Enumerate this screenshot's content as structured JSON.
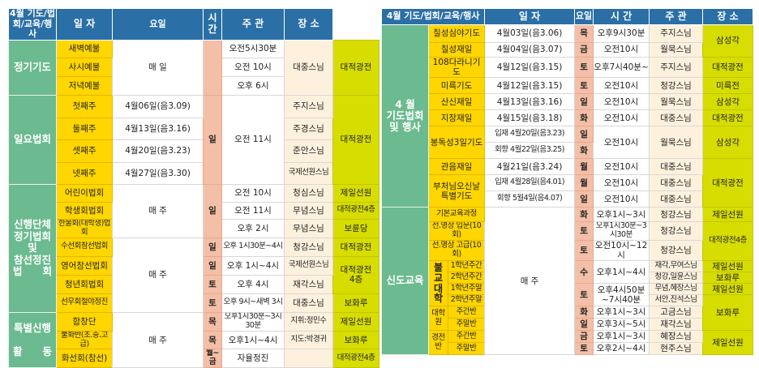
{
  "colors": {
    "header": "#2a6fa5",
    "category": "#6cba8f",
    "item": "#ffd600",
    "day": "#f3bfa6",
    "host": "#fdf1de",
    "place": "#d7dd00"
  },
  "L": {
    "header": {
      "cat": "4월 기도/법회/교육/행사",
      "date": "일 자",
      "day": "요일",
      "time": "시 간",
      "host": "주 관",
      "place": "장 소"
    },
    "regular": {
      "category": "정기기도",
      "items": [
        "새벽예불",
        "사시예불",
        "저녁예불"
      ],
      "date": "매 일",
      "times": [
        "오전5시30분",
        "오전 10시",
        "오후 6시"
      ],
      "host": "대중스님",
      "place": "대적광전"
    },
    "sunday": {
      "category": "일요법회",
      "items": [
        "첫째주",
        "둘째주",
        "셋째주",
        "넷째주"
      ],
      "dates": [
        "4월06일(음3.09)",
        "4월13일(음3.16)",
        "4월20일(음3.23)",
        "4월27일(음3.30)"
      ],
      "day": "일",
      "time": "오전 11시",
      "hosts": [
        "주지스님",
        "주경스님",
        "준안스님",
        "국제선원스님"
      ],
      "place": "대적광전"
    },
    "groups": {
      "category": "신행단체\n정기법회\n및\n참선정진\n법　　회",
      "items": [
        "어린이법회",
        "학생회법회",
        "한울회(대학생)법회",
        "수선회참선법회",
        "영어참선법회",
        "청년회법회",
        "선우회철야정진"
      ],
      "date_a": "매 주",
      "day_a": "일",
      "date_b": "매 주",
      "days_b": [
        "일",
        "일",
        "토",
        "토"
      ],
      "times": [
        "오전 10시",
        "오전 11시",
        "오후 2시",
        "오후 1시30분~4시",
        "오후 1시~4시",
        "오후 4시",
        "오후 9시~새벽 3시"
      ],
      "hosts": [
        "청심스님",
        "무념스님",
        "무념스님",
        "청강스님",
        "국제선원스님",
        "재각스님",
        "대중스님"
      ],
      "places": [
        "제일선원",
        "대적광전4층",
        "보륜당",
        "대적광전",
        "대적광전\n4층",
        "보화루"
      ]
    },
    "special": {
      "category": "특별신행\n\n활　　동",
      "items": [
        "합창단",
        "불화반(초.중.고급)",
        "화선회(참선)"
      ],
      "date": "매 주",
      "days": [
        "목",
        "목",
        "월~금"
      ],
      "times": [
        "오후1시30분~3시30분",
        "오후1시~4시",
        "자율정진"
      ],
      "hosts": [
        "지휘:정민수",
        "지도:박경귀",
        ""
      ],
      "places": [
        "제일선원",
        "보화루",
        "대적광전4층"
      ]
    }
  },
  "R": {
    "header": {
      "cat": "4월 기도/법회/교육/행사",
      "date": "일 자",
      "day": "요일",
      "time": "시 간",
      "host": "주 관",
      "place": "장 소"
    },
    "events": {
      "category": "4 월\n기도법회\n및 행사",
      "rows": [
        {
          "name": "칠성심야기도",
          "date": "4월03일(음3.06)",
          "day": "목",
          "time": "오후9시30분",
          "host": "주지스님",
          "place": "삼성각"
        },
        {
          "name": "칠성재일",
          "date": "4월04일(음3.07)",
          "day": "금",
          "time": "오전10시",
          "host": "월묵스님"
        },
        {
          "name": "108다라니기도",
          "date": "4월12일(음3.15)",
          "day": "토",
          "time": "오후7시40분~",
          "host": "주지스님",
          "place": "대적광전"
        },
        {
          "name": "미륵기도",
          "date": "4월12일(음3.15)",
          "day": "토",
          "time": "오전10시",
          "host": "청강스님",
          "place": "미륵전"
        },
        {
          "name": "산신재일",
          "date": "4월13일(음3.16)",
          "day": "일",
          "time": "오전10시",
          "host": "월묵스님",
          "place": "삼성각"
        },
        {
          "name": "지장재일",
          "date": "4월15일(음3.18)",
          "day": "화",
          "time": "오전10시",
          "host": "대중스님",
          "place": "대적광전"
        },
        {
          "name": "봉독성3일기도",
          "dates": [
            "입재 4월20일(음3.23)",
            "회향 4월22일(음3.25)"
          ],
          "days": [
            "일",
            "화"
          ],
          "time": "오전10시",
          "host": "월묵스님",
          "place": "삼성각"
        },
        {
          "name": "관음재일",
          "date": "4월21일(음3.24)",
          "day": "월",
          "time": "오전10시",
          "host": "대중스님",
          "place": "대적광전"
        },
        {
          "name": "부처님오신날\n특별기도",
          "dates": [
            "입재 4월28일(음4.01)",
            "회향 5월4일(음4.07)"
          ],
          "days": [
            "월",
            "일"
          ],
          "times": [
            "오전10시",
            "오전10시"
          ],
          "hosts": [
            "대중스님",
            "대중스님"
          ]
        }
      ]
    },
    "edu": {
      "category": "신도교육",
      "date": "매 주",
      "rows": [
        {
          "name": "기본교육과정",
          "day": "화",
          "time": "오후1시~3시",
          "host": "청강스님",
          "place": "제일선원"
        },
        {
          "name": "선.명상 입문(10회)",
          "day": "토",
          "time": "오후1시30분~3시30분",
          "host": "청강스님",
          "place": "대적광전4층"
        },
        {
          "name": "선.명상 고급(10회)",
          "day": "토",
          "time": "오전10시~12시",
          "host": "청강스님"
        },
        {
          "group": "불\n교\n대\n학",
          "name": "1학년주간",
          "day": "수",
          "time": "오후1시~4시",
          "host": "재각,무여스님",
          "place": "제일선원"
        },
        {
          "name": "2학년주간",
          "host": "청강,일윤스님",
          "place": "보화루"
        },
        {
          "name": "1학년주말",
          "day": "토",
          "time": "오후4시50분\n~7시40분",
          "host": "무념,혜장스님",
          "place": "제일선원"
        },
        {
          "name": "2학년주말",
          "host": "서안,진석스님",
          "place": "보화루"
        },
        {
          "group": "대학원",
          "name": "주간반",
          "day": "화",
          "time": "오후1시~3시",
          "host": "고금스님"
        },
        {
          "name": "주말반",
          "day": "일",
          "time": "오후3시~5시",
          "host": "재각스님"
        },
        {
          "group": "경전반",
          "name": "주간반",
          "day": "금",
          "time": "오후1시~3시",
          "host": "혜장스님",
          "place": "제일선원"
        },
        {
          "name": "주말반",
          "day": "토",
          "time": "오후2시~4시",
          "host": "현주스님"
        }
      ]
    }
  }
}
